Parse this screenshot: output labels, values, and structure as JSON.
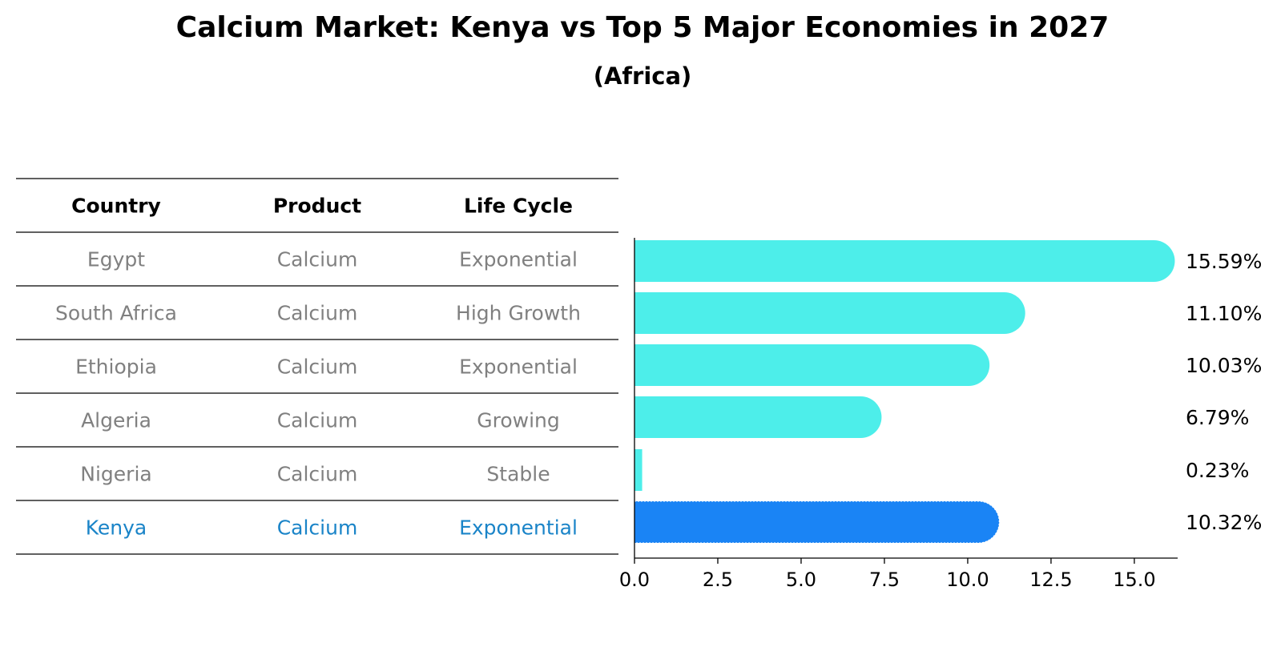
{
  "chart_data": {
    "type": "bar",
    "orientation": "horizontal",
    "title": "Calcium Market: Kenya vs Top 5 Major Economies in 2027",
    "subtitle": "(Africa)",
    "table": {
      "columns": [
        "Country",
        "Product",
        "Life Cycle"
      ],
      "rows": [
        [
          "Egypt",
          "Calcium",
          "Exponential"
        ],
        [
          "South Africa",
          "Calcium",
          "High Growth"
        ],
        [
          "Ethiopia",
          "Calcium",
          "Exponential"
        ],
        [
          "Algeria",
          "Calcium",
          "Growing"
        ],
        [
          "Nigeria",
          "Calcium",
          "Stable"
        ],
        [
          "Kenya",
          "Calcium",
          "Exponential"
        ]
      ],
      "highlight_row": 5
    },
    "categories": [
      "Egypt",
      "South Africa",
      "Ethiopia",
      "Algeria",
      "Nigeria",
      "Kenya"
    ],
    "values": [
      15.59,
      11.1,
      10.03,
      6.79,
      0.23,
      10.32
    ],
    "value_labels": [
      "15.59%",
      "11.10%",
      "10.03%",
      "6.79%",
      "0.23%",
      "10.32%"
    ],
    "xlim": [
      0,
      16.3
    ],
    "xticks": [
      0,
      2.5,
      5,
      7.5,
      10,
      12.5,
      15
    ],
    "xtick_labels": [
      "0.0",
      "2.5",
      "5.0",
      "7.5",
      "10.0",
      "12.5",
      "15.0"
    ],
    "xlabel": "",
    "ylabel": "",
    "grid": false,
    "colors": {
      "bar": "#4deeea",
      "highlight_bar": "#1a84f5",
      "row_text": "#808080",
      "highlight_text": "#1a84c8",
      "header_text": "#000000",
      "rule": "#000000"
    }
  }
}
